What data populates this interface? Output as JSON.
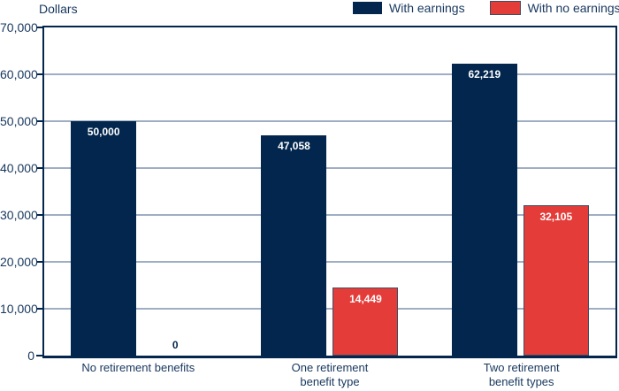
{
  "chart_data": {
    "type": "bar",
    "title": "",
    "ylabel": "Dollars",
    "categories": [
      "No retirement benefits",
      "One retirement\nbenefit type",
      "Two retirement\nbenefit types"
    ],
    "series": [
      {
        "name": "With earnings",
        "color": "#02264d",
        "values": [
          50000,
          47058,
          62219
        ],
        "value_labels": [
          "50,000",
          "47,058",
          "62,219"
        ]
      },
      {
        "name": "With no earnings",
        "color": "#e43c39",
        "border_color": "#3e4e63",
        "values": [
          0,
          14449,
          32105
        ],
        "value_labels": [
          "0",
          "14,449",
          "32,105"
        ]
      }
    ],
    "ylim": [
      0,
      70000
    ],
    "ytick_interval": 10000,
    "yticks": [
      "0",
      "10,000",
      "20,000",
      "30,000",
      "40,000",
      "50,000",
      "60,000",
      "70,000"
    ],
    "grid": true,
    "legend_position": "top-right",
    "palette": {
      "axis": "#02264d",
      "grid": "#9faec3",
      "text": "#17375e",
      "value_label_inside": "#ffffff"
    }
  }
}
